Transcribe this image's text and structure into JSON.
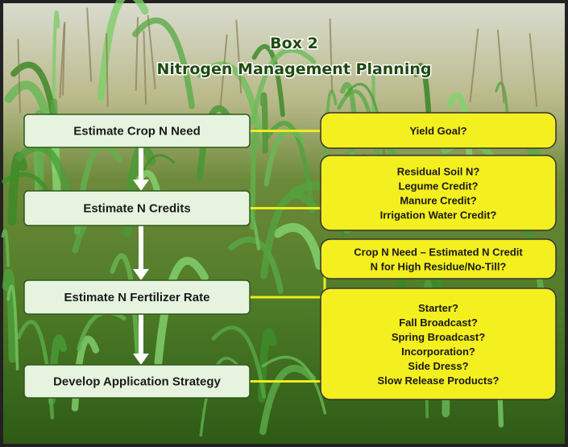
{
  "title": {
    "line1": "Box 2",
    "line2": "Nitrogen Management Planning"
  },
  "steps": [
    {
      "label": "Estimate Crop N Need"
    },
    {
      "label": "Estimate N Credits"
    },
    {
      "label": "Estimate N Fertilizer Rate"
    },
    {
      "label": "Develop Application Strategy"
    }
  ],
  "questions": [
    {
      "lines": [
        "Yield Goal?"
      ]
    },
    {
      "lines": [
        "Residual Soil N?",
        "Legume Credit?",
        "Manure Credit?",
        "Irrigation Water Credit?"
      ]
    },
    {
      "lines": [
        "Crop N Need – Estimated N Credit",
        "N for High Residue/No-Till?"
      ]
    },
    {
      "lines": [
        "Starter?",
        "Fall Broadcast?",
        "Spring Broadcast?",
        "Incorporation?",
        "Side Dress?",
        "Slow Release Products?"
      ]
    }
  ]
}
